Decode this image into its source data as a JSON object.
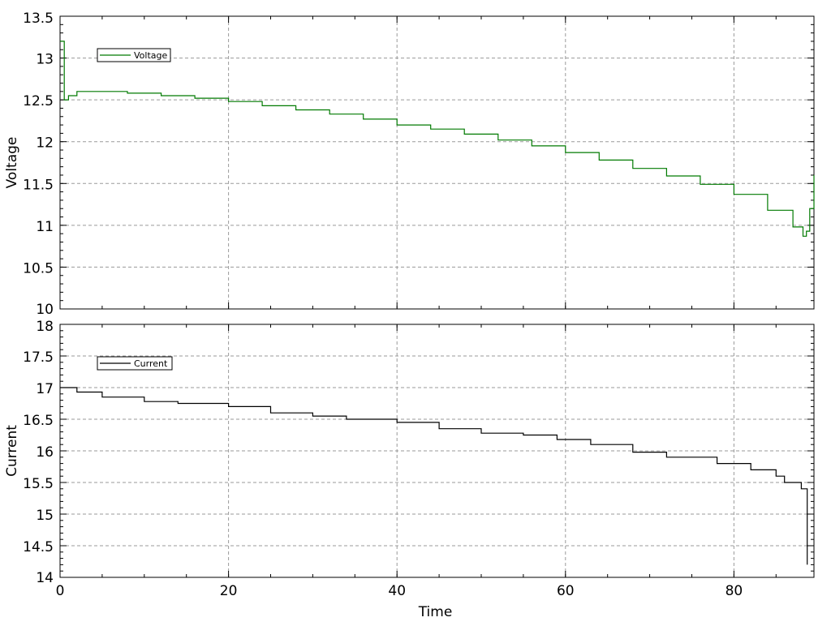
{
  "chart_data": [
    {
      "type": "line",
      "title": "",
      "xlabel": "",
      "ylabel": "Voltage",
      "xlim": [
        0,
        89.5
      ],
      "ylim": [
        10,
        13.5
      ],
      "xticks": [
        0,
        20,
        40,
        60,
        80
      ],
      "yticks": [
        10,
        10.5,
        11,
        11.5,
        12,
        12.5,
        13,
        13.5
      ],
      "ytick_labels": [
        "10",
        "10.5",
        "11",
        "11.5",
        "12",
        "12.5",
        "13",
        "13.5"
      ],
      "grid": true,
      "legend": "top-left",
      "series": [
        {
          "name": "Voltage",
          "color": "#007a00",
          "x": [
            0,
            0.5,
            1,
            2,
            4,
            8,
            12,
            16,
            20,
            24,
            28,
            32,
            36,
            40,
            44,
            48,
            52,
            56,
            60,
            64,
            68,
            72,
            76,
            80,
            84,
            87,
            88.2,
            88.6,
            89.0,
            89.5
          ],
          "y": [
            13.2,
            12.5,
            12.55,
            12.6,
            12.6,
            12.58,
            12.55,
            12.52,
            12.48,
            12.43,
            12.38,
            12.33,
            12.27,
            12.2,
            12.15,
            12.09,
            12.02,
            11.95,
            11.87,
            11.78,
            11.68,
            11.59,
            11.49,
            11.37,
            11.18,
            10.98,
            10.87,
            10.93,
            11.2,
            11.6
          ]
        }
      ]
    },
    {
      "type": "line",
      "title": "",
      "xlabel": "Time",
      "ylabel": "Current",
      "xlim": [
        0,
        89.5
      ],
      "ylim": [
        14,
        18
      ],
      "xticks": [
        0,
        20,
        40,
        60,
        80
      ],
      "xtick_labels": [
        "0",
        "20",
        "40",
        "60",
        "80"
      ],
      "yticks": [
        14,
        14.5,
        15,
        15.5,
        16,
        16.5,
        17,
        17.5,
        18
      ],
      "ytick_labels": [
        "14",
        "14.5",
        "15",
        "15.5",
        "16",
        "16.5",
        "17",
        "17.5",
        "18"
      ],
      "grid": true,
      "legend": "top-left",
      "series": [
        {
          "name": "Current",
          "color": "#000000",
          "x": [
            0,
            2,
            5,
            10,
            14,
            20,
            25,
            30,
            34,
            40,
            45,
            50,
            55,
            59,
            63,
            68,
            72,
            78,
            82,
            85,
            86,
            88,
            88.7
          ],
          "y": [
            17.0,
            16.93,
            16.85,
            16.78,
            16.75,
            16.7,
            16.6,
            16.55,
            16.5,
            16.45,
            16.35,
            16.28,
            16.25,
            16.18,
            16.1,
            15.98,
            15.9,
            15.8,
            15.7,
            15.6,
            15.5,
            15.4,
            14.2
          ]
        }
      ]
    }
  ]
}
